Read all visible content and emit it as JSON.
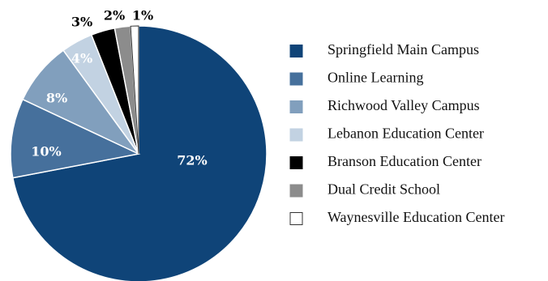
{
  "chart_data": {
    "type": "pie",
    "title": "",
    "legend_position": "right",
    "slices": [
      {
        "label": "Springfield Main Campus",
        "value": 72,
        "display": "72%",
        "color": "#0f4478",
        "label_color": "#ffffff"
      },
      {
        "label": "Online Learning",
        "value": 10,
        "display": "10%",
        "color": "#46709c",
        "label_color": "#ffffff"
      },
      {
        "label": "Richwood Valley Campus",
        "value": 8,
        "display": "8%",
        "color": "#819fbd",
        "label_color": "#ffffff"
      },
      {
        "label": "Lebanon Education Center",
        "value": 4,
        "display": "4%",
        "color": "#c2d2e2",
        "label_color": "#ffffff"
      },
      {
        "label": "Branson Education Center",
        "value": 3,
        "display": "3%",
        "color": "#000000",
        "label_color": "#000000"
      },
      {
        "label": "Dual Credit School",
        "value": 2,
        "display": "2%",
        "color": "#8c8c8c",
        "label_color": "#000000"
      },
      {
        "label": "Waynesville Education Center",
        "value": 1,
        "display": "1%",
        "color": "#ffffff",
        "label_color": "#000000"
      }
    ]
  }
}
